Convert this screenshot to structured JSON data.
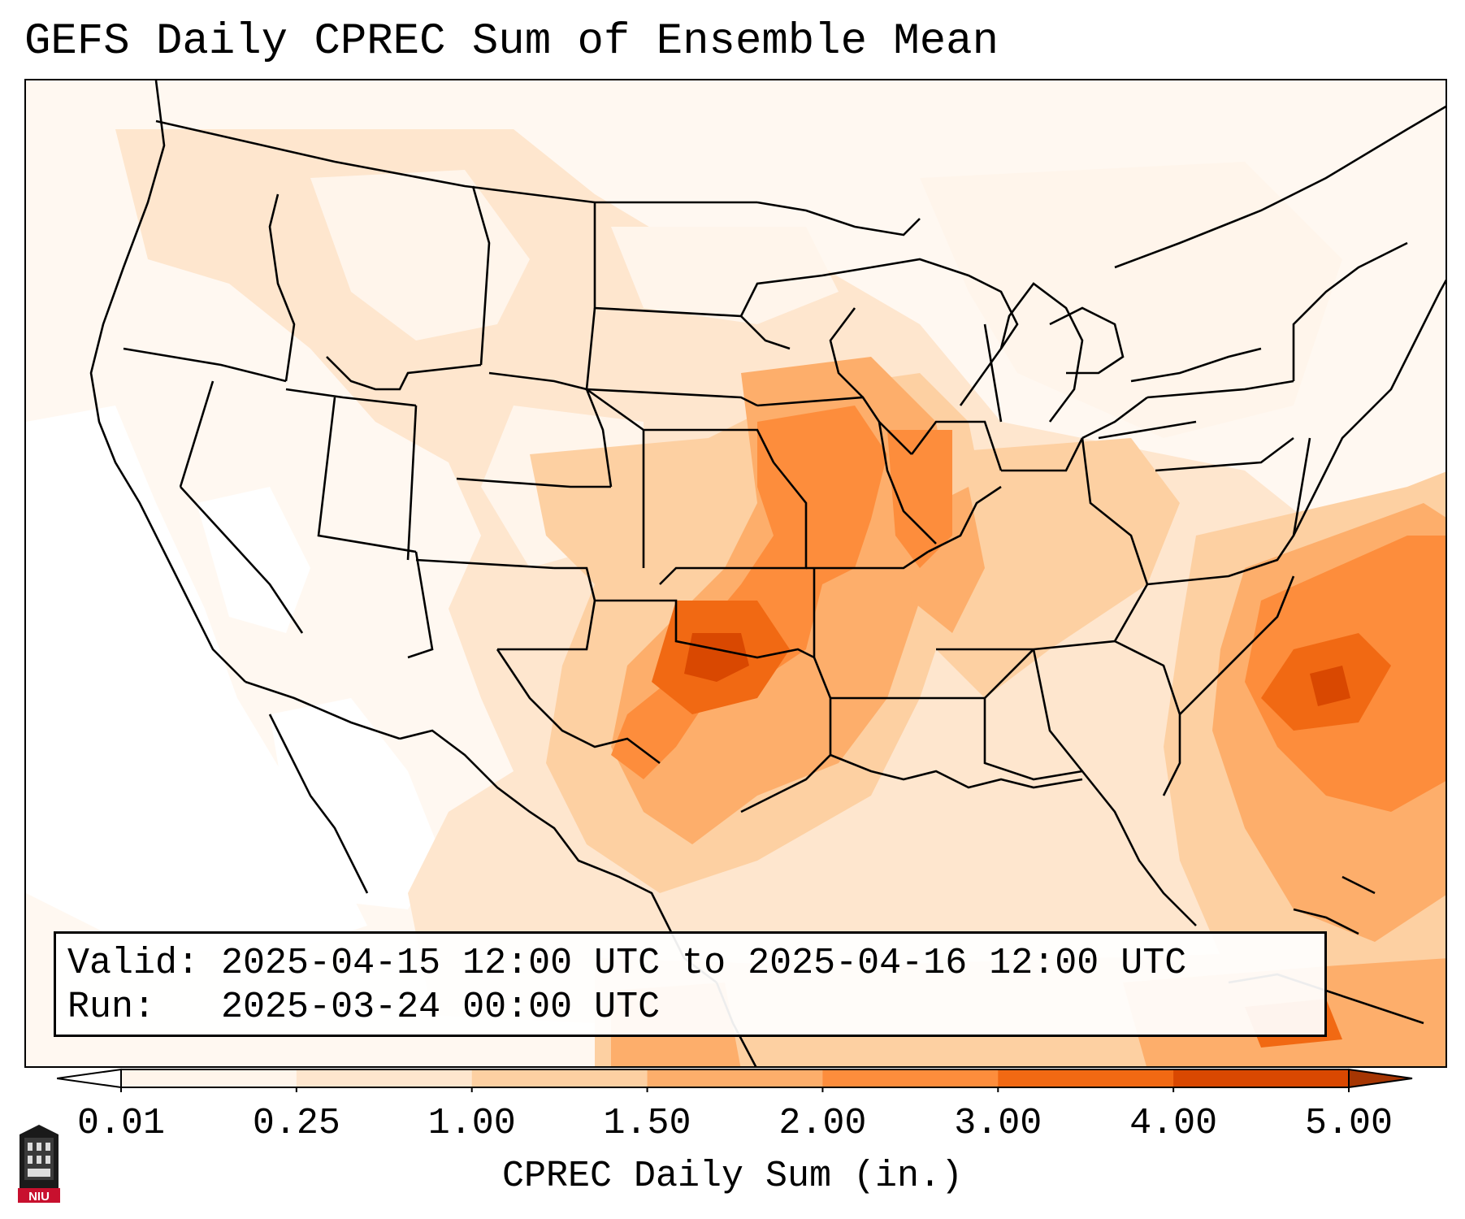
{
  "title": "GEFS Daily CPREC Sum of Ensemble Mean",
  "info": {
    "valid_label": "Valid:",
    "valid_value": "2025-04-15 12:00 UTC to 2025-04-16 12:00 UTC",
    "run_label": "Run:",
    "run_value": "2025-03-24 00:00 UTC"
  },
  "colorbar": {
    "label": "CPREC Daily Sum (in.)",
    "ticks": [
      "0.01",
      "0.25",
      "1.00",
      "1.50",
      "2.00",
      "3.00",
      "4.00",
      "5.00"
    ],
    "colors": [
      "#fff5eb",
      "#fee6ce",
      "#fdd0a2",
      "#fdae6b",
      "#fd8d3c",
      "#f16913",
      "#d94801",
      "#a63603"
    ],
    "under_color": "#ffffff",
    "over_color": "#a63603",
    "extend": "both"
  },
  "logo": {
    "text": "NIU",
    "color": "#c8102e"
  }
}
